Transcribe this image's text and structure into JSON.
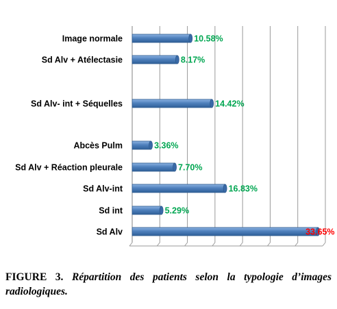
{
  "chart_data": {
    "type": "bar",
    "orientation": "horizontal",
    "categories": [
      "Image normale",
      "Sd Alv + Atélectasie",
      "Sd Alv- int + Séquelles",
      "Abcès Pulm",
      "Sd Alv + Réaction pleurale",
      "Sd Alv-int",
      "Sd int",
      "Sd Alv"
    ],
    "values": [
      10.58,
      8.17,
      14.42,
      3.36,
      7.7,
      16.83,
      5.29,
      33.65
    ],
    "value_labels": [
      "10.58%",
      "8.17%",
      "14.42%",
      "3.36%",
      "7.70%",
      "16.83%",
      "5.29%",
      "33.65%"
    ],
    "xlim": [
      0,
      35
    ],
    "grid": true,
    "legend": "none",
    "colors": {
      "bar": "#4f81bd",
      "bar_edge": "#2e5b8e",
      "label_default": "#00a651",
      "label_highlight": "#ff0000",
      "grid": "#999999"
    }
  },
  "caption": {
    "label": "FIGURE 3.",
    "text": "Répartition des patients selon la typologie d’images radiologiques."
  }
}
